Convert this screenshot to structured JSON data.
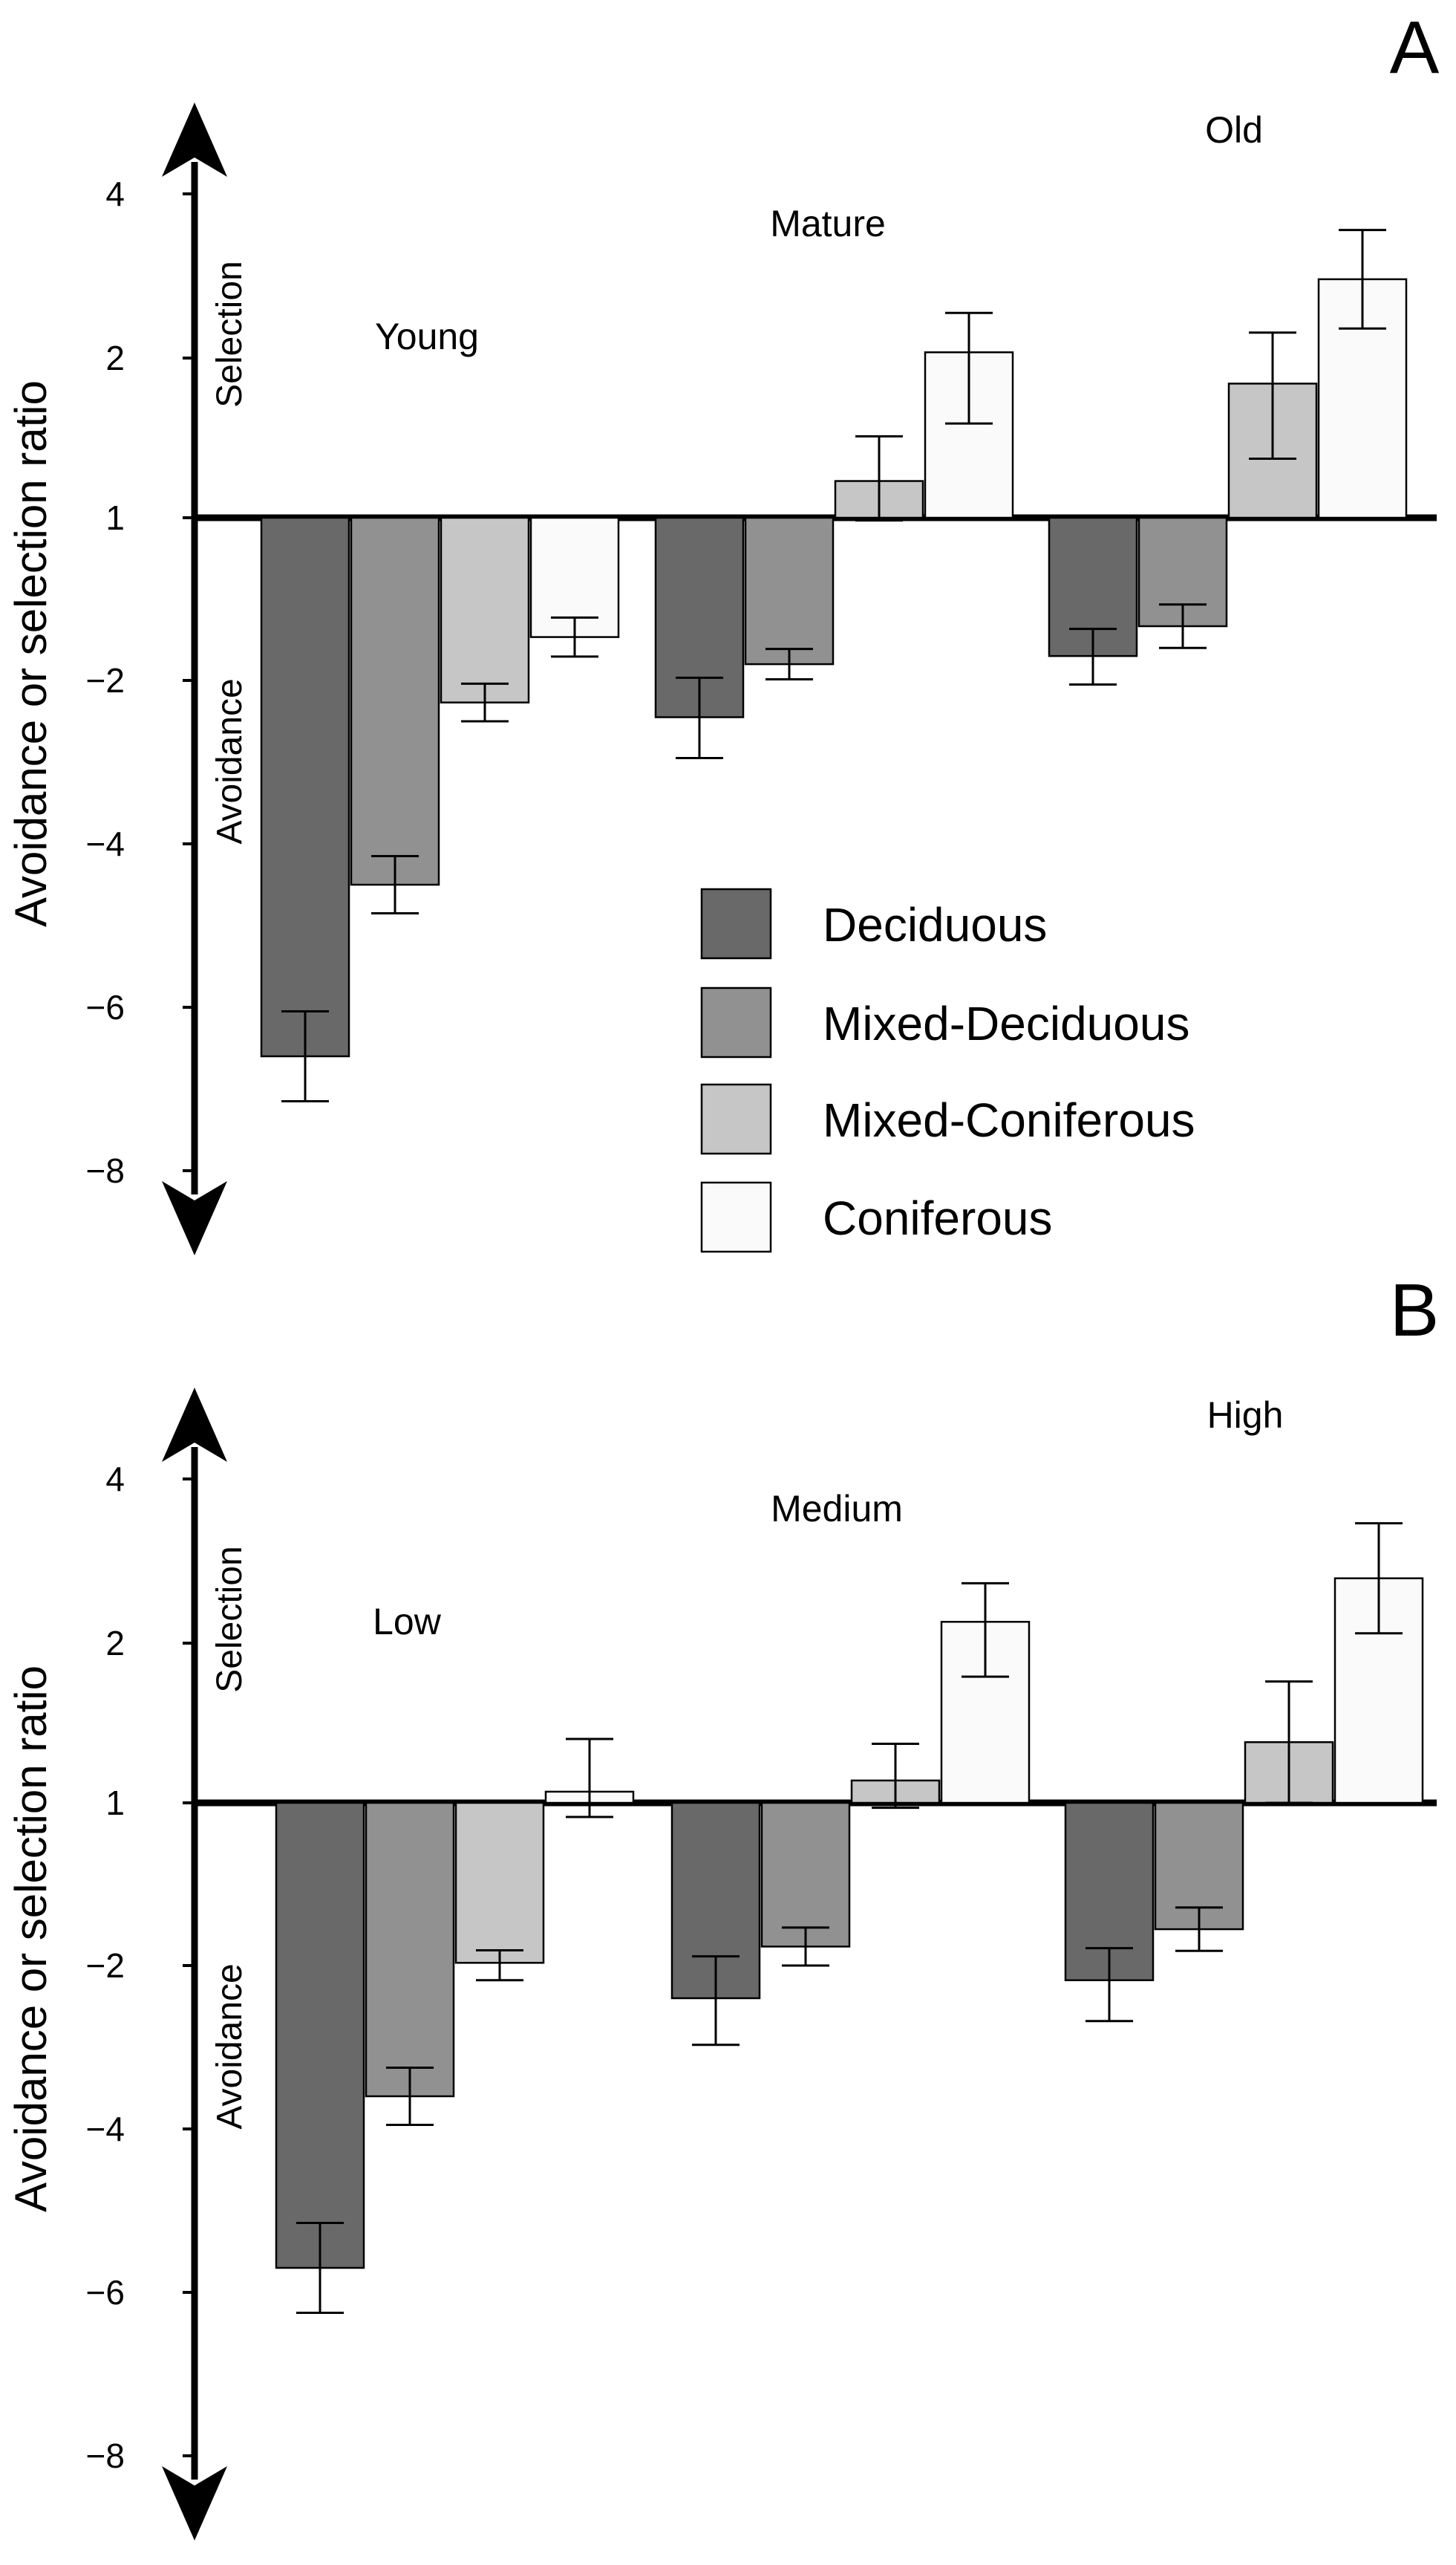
{
  "chart_data": [
    {
      "panel_label": "A",
      "type": "bar",
      "ylabel": "Avoidance or selection ratio",
      "selection_label": "Selection",
      "avoidance_label": "Avoidance",
      "ylim": [
        -8,
        4
      ],
      "y_ticks": [
        "4",
        "2",
        "1",
        "−2",
        "−4",
        "−6",
        "−8"
      ],
      "categories": [
        "Young",
        "Mature",
        "Old"
      ],
      "series": [
        {
          "name": "Deciduous",
          "color": "#696969",
          "values": [
            -6.6,
            -2.45,
            -1.55
          ],
          "errors": [
            0.55,
            0.5,
            0.5
          ]
        },
        {
          "name": "Mixed-Deciduous",
          "color": "#919191",
          "values": [
            -4.5,
            -1.7,
            -1.0
          ],
          "errors": [
            0.35,
            0.28,
            0.4
          ]
        },
        {
          "name": "Mixed-Coniferous",
          "color": "#c6c6c6",
          "values": [
            -2.27,
            1.23,
            1.84
          ],
          "errors": [
            0.23,
            0.28,
            0.47
          ]
        },
        {
          "name": "Coniferous",
          "color": "#fafafa",
          "values": [
            -1.2,
            2.07,
            2.96
          ],
          "errors": [
            0.36,
            0.48,
            0.6
          ]
        }
      ]
    },
    {
      "panel_label": "B",
      "type": "bar",
      "ylabel": "Avoidance or selection ratio",
      "selection_label": "Selection",
      "avoidance_label": "Avoidance",
      "ylim": [
        -8,
        4
      ],
      "y_ticks": [
        "4",
        "2",
        "1",
        "−2",
        "−4",
        "−6",
        "−8"
      ],
      "categories": [
        "Low",
        "Medium",
        "High"
      ],
      "series": [
        {
          "name": "Deciduous",
          "color": "#696969",
          "values": [
            -5.7,
            -2.4,
            -2.18
          ],
          "errors": [
            0.55,
            0.57,
            0.5
          ]
        },
        {
          "name": "Mixed-Deciduous",
          "color": "#919191",
          "values": [
            -3.6,
            -1.65,
            -1.33
          ],
          "errors": [
            0.35,
            0.35,
            0.4
          ]
        },
        {
          "name": "Mixed-Coniferous",
          "color": "#c6c6c6",
          "values": [
            -1.95,
            1.14,
            1.38
          ],
          "errors": [
            0.23,
            0.23,
            0.38
          ]
        },
        {
          "name": "Coniferous",
          "color": "#fafafa",
          "values": [
            1.07,
            2.26,
            2.79
          ],
          "errors": [
            0.33,
            0.47,
            0.67
          ]
        }
      ]
    }
  ],
  "legend": {
    "items": [
      {
        "label": "Deciduous",
        "color": "#696969"
      },
      {
        "label": "Mixed-Deciduous",
        "color": "#919191"
      },
      {
        "label": "Mixed-Coniferous",
        "color": "#c6c6c6"
      },
      {
        "label": "Coniferous",
        "color": "#fafafa"
      }
    ]
  }
}
